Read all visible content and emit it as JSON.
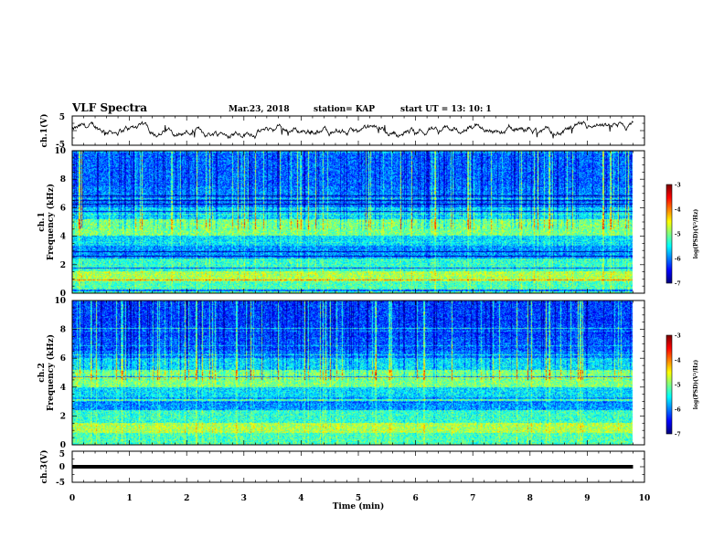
{
  "header": {
    "title": "VLF Spectra",
    "date": "Mar.23, 2018",
    "station": "station= KAP",
    "start": "start  UT =   13: 10: 1"
  },
  "chart_data": [
    {
      "type": "line",
      "name": "ch1-waveform",
      "ylabel": "ch.1(V)",
      "ylim": [
        -5,
        5
      ],
      "yticks": [
        "5",
        "-5"
      ],
      "xlim": [
        0,
        10
      ],
      "data_end_min": 9.8,
      "amplitude_v": 2.0
    },
    {
      "type": "heatmap",
      "name": "ch1-spectrogram",
      "ylabel_channel": "ch.1",
      "ylabel": "Frequency (kHz)",
      "ylim": [
        0,
        10
      ],
      "yticks": [
        "0",
        "2",
        "4",
        "6",
        "8",
        "10"
      ],
      "xlim": [
        0,
        10
      ],
      "colorbar": {
        "label": "log(PSD)(V²/Hz)",
        "range": [
          -7,
          -3
        ],
        "ticks": [
          "-3",
          "-4",
          "-5",
          "-6",
          "-7"
        ]
      }
    },
    {
      "type": "heatmap",
      "name": "ch2-spectrogram",
      "ylabel_channel": "ch.2",
      "ylabel": "Frequency (kHz)",
      "ylim": [
        0,
        10
      ],
      "yticks": [
        "0",
        "2",
        "4",
        "6",
        "8",
        "10"
      ],
      "xlim": [
        0,
        10
      ],
      "colorbar": {
        "label": "log(PSD)(V²/Hz)",
        "range": [
          -7,
          -3
        ],
        "ticks": [
          "-3",
          "-4",
          "-5",
          "-6",
          "-7"
        ]
      }
    },
    {
      "type": "line",
      "name": "ch3-waveform",
      "ylabel": "ch.3(V)",
      "ylim": [
        -5,
        5
      ],
      "yticks": [
        "5",
        "0",
        "-5"
      ],
      "xlim": [
        0,
        10
      ],
      "constant_value_v": 0
    }
  ],
  "xaxis": {
    "label": "Time (min)",
    "ticks": [
      "0",
      "1",
      "2",
      "3",
      "4",
      "5",
      "6",
      "7",
      "8",
      "9",
      "10"
    ]
  }
}
